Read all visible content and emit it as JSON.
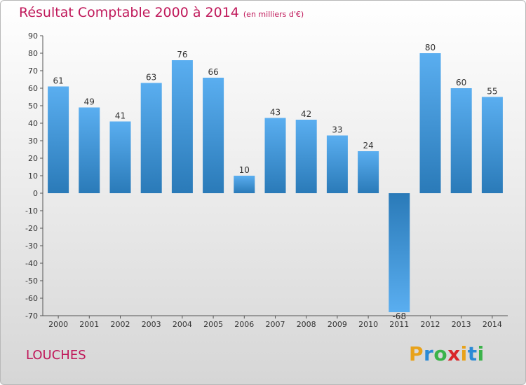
{
  "chart_data": {
    "type": "bar",
    "title": "Résultat Comptable 2000 à 2014",
    "subtitle": "(en milliers d'€)",
    "categories": [
      "2000",
      "2001",
      "2002",
      "2003",
      "2004",
      "2005",
      "2006",
      "2007",
      "2008",
      "2009",
      "2010",
      "2011",
      "2012",
      "2013",
      "2014"
    ],
    "values": [
      61,
      49,
      41,
      63,
      76,
      66,
      10,
      43,
      42,
      33,
      24,
      -68,
      80,
      60,
      55
    ],
    "value_labels": [
      "61",
      "49",
      "41",
      "63",
      "76",
      "66",
      "10",
      "43",
      "42",
      "33",
      "24",
      "-68",
      "80",
      "60",
      "55"
    ],
    "y_ticks": [
      90,
      80,
      70,
      60,
      50,
      40,
      30,
      20,
      10,
      0,
      -10,
      -20,
      -30,
      -40,
      -50,
      -60,
      -70
    ],
    "ylim": [
      -70,
      90
    ],
    "grid": false,
    "legend": "none",
    "bar_color_light": "#5aaef0",
    "bar_color_dark": "#2a7ab8"
  },
  "place": "LOUCHES",
  "brand": {
    "letters": [
      "P",
      "r",
      "o",
      "x",
      "i",
      "t",
      "i"
    ],
    "colors": [
      "#e8a21a",
      "#2a8ad6",
      "#3bb34a",
      "#d9262a",
      "#e8a21a",
      "#2a8ad6",
      "#3bb34a"
    ]
  },
  "colors": {
    "title": "#c0185a",
    "axis": "#555555"
  }
}
